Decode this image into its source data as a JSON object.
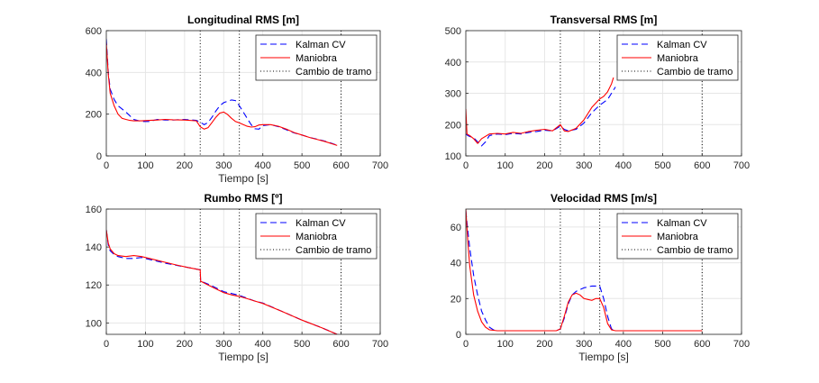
{
  "chart_data": [
    {
      "type": "line",
      "title": "Longitudinal RMS [m]",
      "xlabel": "Tiempo [s]",
      "ylabel": "",
      "xlim": [
        0,
        700
      ],
      "ylim": [
        0,
        600
      ],
      "xticks": [
        0,
        100,
        200,
        300,
        400,
        500,
        600,
        700
      ],
      "yticks": [
        0,
        200,
        400,
        600
      ],
      "grid": true,
      "legend_position": "top-right",
      "vlines": [
        240,
        340,
        600
      ],
      "series": [
        {
          "name": "Kalman CV",
          "color": "#0000ff",
          "style": "dashed",
          "x": [
            0,
            5,
            10,
            20,
            30,
            50,
            70,
            90,
            110,
            130,
            150,
            170,
            200,
            230,
            240,
            250,
            260,
            270,
            280,
            290,
            300,
            310,
            320,
            330,
            340,
            350,
            360,
            370,
            380,
            390,
            400,
            420,
            440,
            460,
            480,
            500,
            520,
            540,
            560,
            580,
            590
          ],
          "y": [
            560,
            400,
            320,
            270,
            240,
            210,
            175,
            165,
            165,
            175,
            172,
            172,
            175,
            170,
            162,
            150,
            160,
            185,
            215,
            240,
            255,
            262,
            268,
            265,
            240,
            210,
            180,
            150,
            130,
            128,
            145,
            150,
            140,
            125,
            110,
            100,
            88,
            80,
            70,
            58,
            50
          ]
        },
        {
          "name": "Maniobra",
          "color": "#ff0000",
          "style": "solid",
          "x": [
            0,
            5,
            10,
            20,
            30,
            40,
            50,
            60,
            70,
            90,
            110,
            130,
            150,
            170,
            200,
            230,
            240,
            250,
            260,
            270,
            280,
            290,
            300,
            310,
            320,
            330,
            340,
            350,
            360,
            370,
            380,
            390,
            400,
            420,
            440,
            460,
            480,
            500,
            520,
            540,
            560,
            580,
            590
          ],
          "y": [
            540,
            390,
            300,
            240,
            200,
            180,
            175,
            170,
            168,
            168,
            170,
            172,
            175,
            173,
            172,
            168,
            140,
            128,
            135,
            160,
            185,
            205,
            210,
            198,
            180,
            165,
            158,
            150,
            142,
            138,
            140,
            148,
            150,
            150,
            142,
            128,
            112,
            100,
            88,
            78,
            68,
            56,
            50
          ]
        },
        {
          "name": "Cambio de tramo",
          "color": "#000000",
          "style": "dotted",
          "x": [],
          "y": []
        }
      ]
    },
    {
      "type": "line",
      "title": "Transversal RMS [m]",
      "xlabel": "",
      "ylabel": "",
      "xlim": [
        0,
        700
      ],
      "ylim": [
        100,
        500
      ],
      "xticks": [
        0,
        100,
        200,
        300,
        400,
        500,
        600,
        700
      ],
      "yticks": [
        100,
        200,
        300,
        400,
        500
      ],
      "grid": true,
      "legend_position": "top-right",
      "vlines": [
        240,
        340,
        600
      ],
      "series": [
        {
          "name": "Kalman CV",
          "color": "#0000ff",
          "style": "dashed",
          "x": [
            0,
            5,
            10,
            20,
            30,
            40,
            50,
            60,
            80,
            100,
            120,
            140,
            160,
            180,
            200,
            220,
            240,
            250,
            260,
            280,
            300,
            320,
            340,
            360,
            370,
            380
          ],
          "y": [
            170,
            165,
            162,
            158,
            145,
            132,
            145,
            165,
            170,
            168,
            172,
            170,
            175,
            178,
            182,
            180,
            195,
            185,
            180,
            185,
            205,
            238,
            262,
            280,
            300,
            320
          ]
        },
        {
          "name": "Maniobra",
          "color": "#ff0000",
          "style": "solid",
          "x": [
            0,
            3,
            10,
            20,
            30,
            40,
            60,
            80,
            100,
            120,
            140,
            160,
            180,
            200,
            220,
            240,
            250,
            260,
            280,
            300,
            320,
            340,
            350,
            360,
            370,
            375
          ],
          "y": [
            250,
            170,
            165,
            155,
            140,
            155,
            170,
            172,
            170,
            175,
            172,
            178,
            182,
            185,
            180,
            200,
            180,
            178,
            188,
            215,
            255,
            282,
            290,
            305,
            330,
            350
          ]
        },
        {
          "name": "Cambio de tramo",
          "color": "#000000",
          "style": "dotted",
          "x": [],
          "y": []
        }
      ]
    },
    {
      "type": "line",
      "title": "Rumbo RMS [º]",
      "xlabel": "Tiempo [s]",
      "ylabel": "",
      "xlim": [
        0,
        700
      ],
      "ylim": [
        94,
        160
      ],
      "xticks": [
        0,
        100,
        200,
        300,
        400,
        500,
        600,
        700
      ],
      "yticks": [
        100,
        120,
        140,
        160
      ],
      "grid": true,
      "legend_position": "top-right",
      "vlines": [
        240,
        340,
        600
      ],
      "series": [
        {
          "name": "Kalman CV",
          "color": "#0000ff",
          "style": "dashed",
          "x": [
            0,
            5,
            10,
            20,
            30,
            50,
            70,
            90,
            120,
            150,
            180,
            210,
            240,
            241,
            260,
            280,
            300,
            320,
            340,
            360,
            380,
            400,
            450,
            500,
            550,
            590
          ],
          "y": [
            149,
            141,
            138,
            136,
            135,
            134,
            134,
            134.5,
            133,
            131.5,
            130.3,
            129.2,
            128,
            122,
            120.5,
            118.5,
            116.5,
            115.5,
            114.5,
            113,
            111.5,
            110.5,
            106,
            101.5,
            97.5,
            94
          ]
        },
        {
          "name": "Maniobra",
          "color": "#ff0000",
          "style": "solid",
          "x": [
            0,
            5,
            10,
            20,
            30,
            50,
            70,
            90,
            120,
            150,
            180,
            210,
            240,
            241,
            260,
            280,
            300,
            320,
            340,
            360,
            380,
            400,
            450,
            500,
            550,
            590
          ],
          "y": [
            149,
            142,
            139,
            136.5,
            135.5,
            135,
            135.5,
            135,
            133.5,
            132,
            130.5,
            129.2,
            128,
            122,
            120,
            118,
            116,
            114.8,
            114,
            112.8,
            111.5,
            110.3,
            106,
            101.5,
            97.5,
            94
          ]
        },
        {
          "name": "Cambio de tramo",
          "color": "#000000",
          "style": "dotted",
          "x": [],
          "y": []
        }
      ]
    },
    {
      "type": "line",
      "title": "Velocidad RMS [m/s]",
      "xlabel": "Tiempo [s]",
      "ylabel": "",
      "xlim": [
        0,
        700
      ],
      "ylim": [
        0,
        70
      ],
      "xticks": [
        0,
        100,
        200,
        300,
        400,
        500,
        600,
        700
      ],
      "yticks": [
        0,
        20,
        40,
        60
      ],
      "grid": true,
      "legend_position": "top-right",
      "vlines": [
        240,
        340,
        600
      ],
      "series": [
        {
          "name": "Kalman CV",
          "color": "#0000ff",
          "style": "dashed",
          "x": [
            0,
            5,
            10,
            20,
            30,
            40,
            50,
            60,
            70,
            80,
            100,
            150,
            200,
            230,
            240,
            250,
            260,
            270,
            280,
            300,
            320,
            340,
            350,
            360,
            370,
            380,
            400,
            450,
            500,
            550,
            600
          ],
          "y": [
            69,
            58,
            48,
            33,
            22,
            13,
            8,
            4,
            2.5,
            2,
            2,
            2,
            2,
            2,
            3,
            9,
            17,
            22,
            24,
            26,
            27,
            27,
            20,
            10,
            3,
            2,
            2,
            2,
            2,
            2,
            2
          ]
        },
        {
          "name": "Maniobra",
          "color": "#ff0000",
          "style": "solid",
          "x": [
            0,
            5,
            10,
            20,
            30,
            40,
            50,
            60,
            80,
            100,
            150,
            200,
            230,
            240,
            250,
            260,
            270,
            280,
            290,
            300,
            310,
            320,
            330,
            340,
            350,
            360,
            370,
            380,
            400,
            500,
            600
          ],
          "y": [
            70,
            52,
            38,
            22,
            13,
            7,
            4,
            2.5,
            2,
            2,
            2,
            2,
            2,
            3,
            10,
            18,
            22,
            23,
            22,
            20,
            19.5,
            19,
            20,
            20,
            15,
            6,
            2.5,
            2,
            2,
            2,
            2
          ]
        },
        {
          "name": "Cambio de tramo",
          "color": "#000000",
          "style": "dotted",
          "x": [],
          "y": []
        }
      ]
    }
  ]
}
